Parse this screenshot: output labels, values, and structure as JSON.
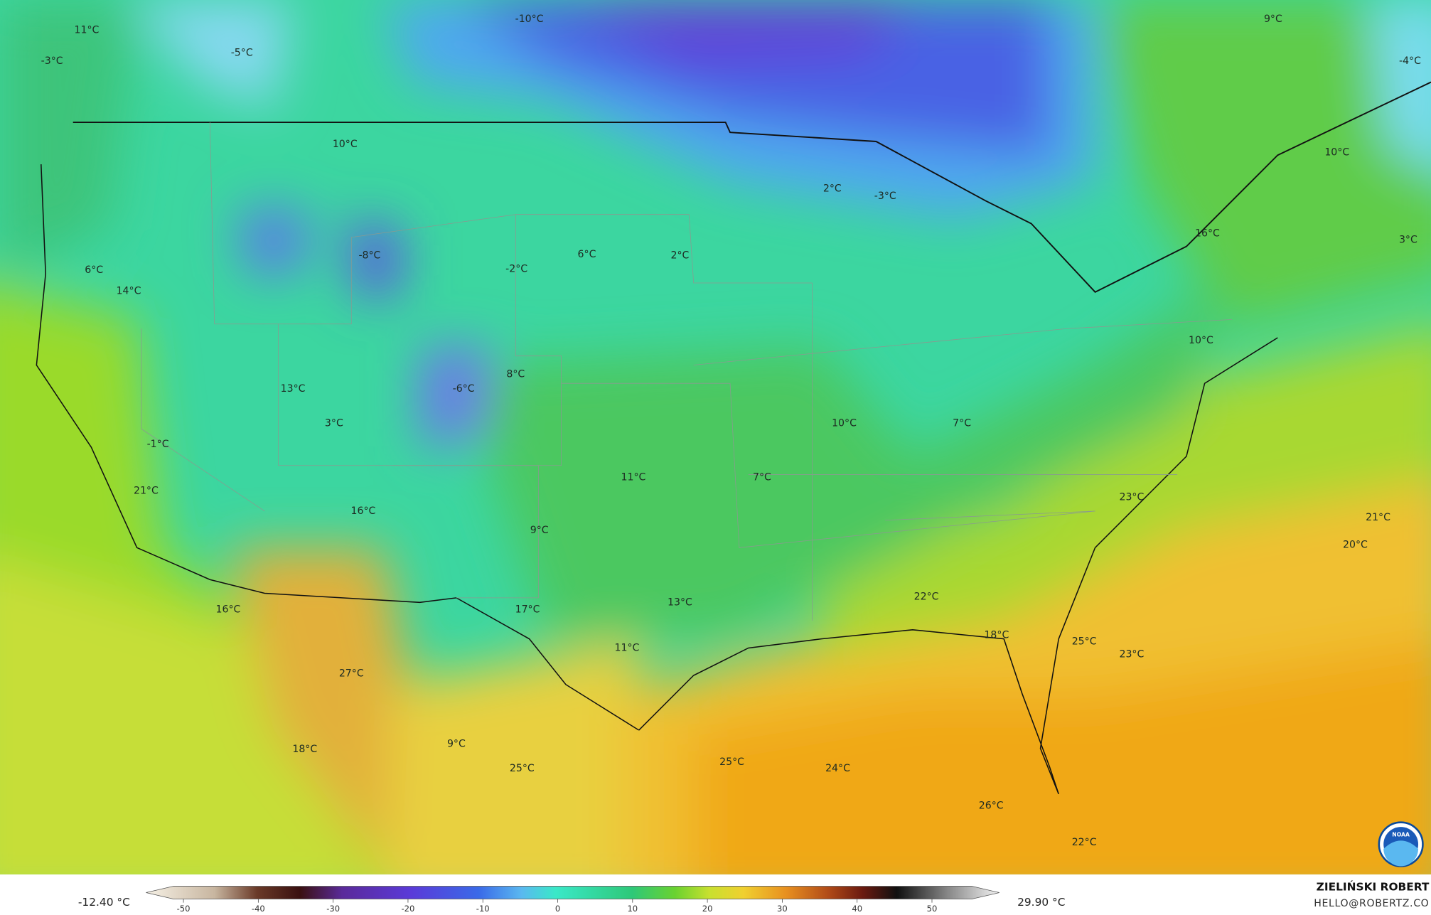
{
  "map": {
    "labels": [
      "11°C",
      "-3°C",
      "-5°C",
      "-10°C",
      "9°C",
      "-4°C",
      "10°C",
      "2°C",
      "-3°C",
      "10°C",
      "16°C",
      "3°C",
      "6°C",
      "14°C",
      "-8°C",
      "-2°C",
      "6°C",
      "2°C",
      "10°C",
      "8°C",
      "-6°C",
      "13°C",
      "3°C",
      "-1°C",
      "10°C",
      "7°C",
      "21°C",
      "11°C",
      "7°C",
      "23°C",
      "21°C",
      "20°C",
      "16°C",
      "9°C",
      "16°C",
      "17°C",
      "13°C",
      "22°C",
      "18°C",
      "25°C",
      "23°C",
      "11°C",
      "27°C",
      "18°C",
      "9°C",
      "25°C",
      "25°C",
      "24°C",
      "26°C",
      "22°C"
    ]
  },
  "colorbar": {
    "min_label": "-12.40 °C",
    "max_label": "29.90 °C",
    "lim": [
      -55,
      59
    ],
    "ticks": [
      -50,
      -40,
      -30,
      -20,
      -10,
      0,
      10,
      20,
      30,
      40,
      50
    ]
  },
  "credits": {
    "name": "ZIELIŃSKI ROBERT",
    "email": "HELLO@ROBERTZ.CO"
  },
  "logo": "NOAA"
}
